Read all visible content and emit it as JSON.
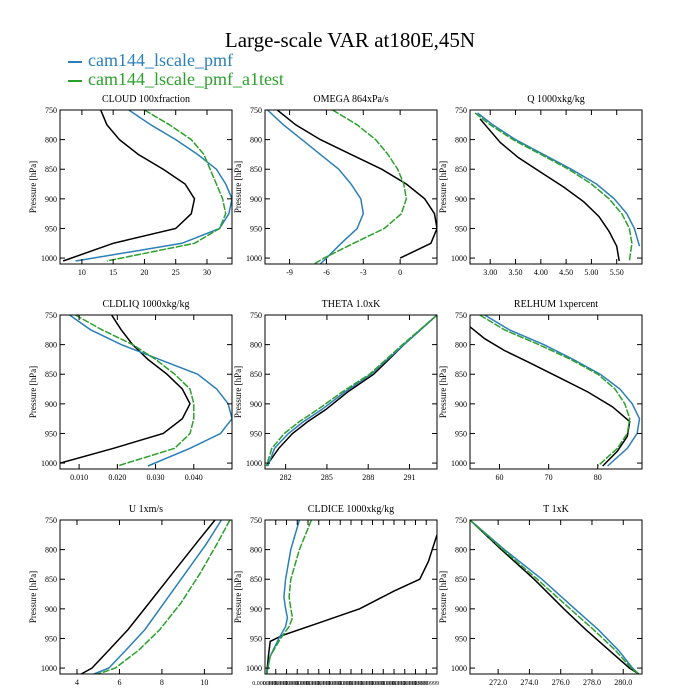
{
  "title": "Large-scale VAR at180E,45N",
  "legend": [
    {
      "name": "cam144_lscale_pmf",
      "color": "#2c7fb8"
    },
    {
      "name": "cam144_lscale_pmf_a1test",
      "color": "#2ca02c"
    }
  ],
  "colors": {
    "control": "#000000"
  },
  "ylabel": "Pressure [hPa]",
  "ylim": [
    750,
    1010
  ],
  "yticks": [
    750,
    800,
    850,
    900,
    950,
    1000
  ],
  "chart_data": [
    {
      "type": "line",
      "title": "CLOUD  100xfraction",
      "xlim": [
        6.5,
        34
      ],
      "xticks": [
        10,
        15,
        20,
        25,
        30
      ],
      "xticklabels": [
        "10",
        "15",
        "20",
        "25",
        "30"
      ],
      "series": [
        {
          "color": "#000000",
          "x": [
            13,
            14,
            16,
            19,
            23,
            26.5,
            28,
            27.5,
            25,
            15,
            7
          ],
          "y": [
            750,
            775,
            800,
            825,
            850,
            875,
            900,
            925,
            950,
            975,
            1005
          ]
        },
        {
          "color": "#2c7fb8",
          "x": [
            17.5,
            21,
            25,
            28.5,
            31.5,
            33,
            34,
            33.5,
            32,
            26,
            9
          ],
          "y": [
            750,
            775,
            800,
            825,
            850,
            875,
            900,
            925,
            950,
            975,
            1005
          ]
        },
        {
          "color": "#2ca02c",
          "x": [
            20,
            24,
            27.5,
            29.5,
            30.5,
            31.5,
            32.5,
            33,
            32,
            28,
            14
          ],
          "y": [
            750,
            775,
            800,
            825,
            850,
            875,
            900,
            925,
            950,
            975,
            1005
          ]
        }
      ]
    },
    {
      "type": "line",
      "title": "OMEGA  864xPa/s",
      "xlim": [
        -11,
        3
      ],
      "xticks": [
        -9,
        -6,
        -3,
        0
      ],
      "xticklabels": [
        "-9",
        "-6",
        "-3",
        "0"
      ],
      "series": [
        {
          "color": "#000000",
          "x": [
            -10,
            -8.5,
            -6.5,
            -4,
            -1.5,
            0.5,
            2,
            2.8,
            3,
            2.5,
            0
          ],
          "y": [
            750,
            775,
            800,
            825,
            850,
            875,
            900,
            925,
            950,
            975,
            1000
          ]
        },
        {
          "color": "#2c7fb8",
          "x": [
            -10.8,
            -9.5,
            -8,
            -6.5,
            -5,
            -4,
            -3.2,
            -3,
            -3.5,
            -4.8,
            -6,
            -6.5
          ],
          "y": [
            750,
            775,
            800,
            825,
            850,
            875,
            900,
            925,
            950,
            975,
            1000,
            1010
          ]
        },
        {
          "color": "#2ca02c",
          "x": [
            -5.5,
            -3.5,
            -2,
            -1,
            -0.2,
            0.3,
            0.5,
            0.1,
            -1.3,
            -3.8,
            -6.2,
            -7
          ],
          "y": [
            750,
            775,
            800,
            825,
            850,
            875,
            900,
            925,
            950,
            975,
            1000,
            1010
          ]
        }
      ]
    },
    {
      "type": "line",
      "title": "Q  1000xkg/kg",
      "xlim": [
        2.6,
        6
      ],
      "xticks": [
        3.0,
        3.5,
        4.0,
        4.5,
        5.0,
        5.5
      ],
      "xticklabels": [
        "3.00",
        "3.50",
        "4.00",
        "4.50",
        "5.00",
        "5.50"
      ],
      "series": [
        {
          "color": "#000000",
          "x": [
            2.8,
            2.95,
            3.2,
            3.55,
            4.0,
            4.45,
            4.85,
            5.15,
            5.35,
            5.5,
            5.55
          ],
          "y": [
            765,
            780,
            805,
            830,
            855,
            880,
            905,
            930,
            955,
            980,
            1005
          ]
        },
        {
          "color": "#2c7fb8",
          "x": [
            2.75,
            3.05,
            3.5,
            4.05,
            4.6,
            5.1,
            5.45,
            5.7,
            5.85,
            5.95
          ],
          "y": [
            755,
            775,
            800,
            825,
            850,
            875,
            900,
            925,
            950,
            980
          ]
        },
        {
          "color": "#2ca02c",
          "x": [
            2.7,
            3.0,
            3.45,
            4.0,
            4.55,
            5.0,
            5.35,
            5.6,
            5.75,
            5.8,
            5.75
          ],
          "y": [
            755,
            775,
            800,
            825,
            850,
            875,
            900,
            925,
            950,
            975,
            1005
          ]
        }
      ]
    },
    {
      "type": "line",
      "title": "CLDLIQ  1000xkg/kg",
      "xlim": [
        0.005,
        0.05
      ],
      "xticks": [
        0.01,
        0.02,
        0.03,
        0.04
      ],
      "xticklabels": [
        "0.010",
        "0.020",
        "0.030",
        "0.040"
      ],
      "series": [
        {
          "color": "#000000",
          "x": [
            0.0185,
            0.021,
            0.024,
            0.028,
            0.033,
            0.037,
            0.039,
            0.037,
            0.032,
            0.019,
            0.005
          ],
          "y": [
            750,
            775,
            800,
            825,
            850,
            875,
            900,
            925,
            950,
            975,
            1000
          ]
        },
        {
          "color": "#2c7fb8",
          "x": [
            0.0075,
            0.013,
            0.021,
            0.031,
            0.041,
            0.046,
            0.049,
            0.05,
            0.047,
            0.039,
            0.028
          ],
          "y": [
            750,
            775,
            800,
            825,
            850,
            875,
            900,
            925,
            950,
            975,
            1005
          ]
        },
        {
          "color": "#2ca02c",
          "x": [
            0.009,
            0.016,
            0.024,
            0.03,
            0.035,
            0.039,
            0.04,
            0.04,
            0.039,
            0.035,
            0.02
          ],
          "y": [
            750,
            775,
            800,
            825,
            850,
            875,
            900,
            925,
            950,
            975,
            1005
          ]
        }
      ]
    },
    {
      "type": "line",
      "title": "THETA  1.0xK",
      "xlim": [
        280.5,
        293
      ],
      "xticks": [
        282,
        285,
        288,
        291
      ],
      "xticklabels": [
        "282",
        "285",
        "288",
        "291"
      ],
      "series": [
        {
          "color": "#000000",
          "x": [
            293,
            290.6,
            288.4,
            286.5,
            284.9,
            283.6,
            282.5,
            281.5,
            280.6
          ],
          "y": [
            750,
            800,
            850,
            880,
            910,
            930,
            950,
            975,
            1005
          ]
        },
        {
          "color": "#2c7fb8",
          "x": [
            293,
            290.6,
            288.2,
            286.3,
            284.6,
            283.3,
            282.2,
            281.2,
            280.7
          ],
          "y": [
            750,
            800,
            850,
            880,
            910,
            930,
            950,
            975,
            1005
          ]
        },
        {
          "color": "#2ca02c",
          "x": [
            293,
            290.5,
            288.1,
            286.1,
            284.3,
            283.0,
            281.9,
            281.0,
            280.6
          ],
          "y": [
            750,
            800,
            850,
            880,
            910,
            930,
            950,
            975,
            1005
          ]
        }
      ]
    },
    {
      "type": "line",
      "title": "RELHUM  1xpercent",
      "xlim": [
        54,
        89
      ],
      "xticks": [
        60,
        70,
        80
      ],
      "xticklabels": [
        "60",
        "70",
        "80"
      ],
      "series": [
        {
          "color": "#000000",
          "x": [
            54,
            57,
            61,
            66,
            72,
            78,
            83,
            86.5,
            86,
            84,
            81
          ],
          "y": [
            770,
            790,
            810,
            830,
            855,
            880,
            905,
            930,
            955,
            980,
            1005
          ]
        },
        {
          "color": "#2c7fb8",
          "x": [
            57,
            62,
            69,
            75,
            80.5,
            84.5,
            87,
            88.5,
            88,
            86,
            82
          ],
          "y": [
            750,
            775,
            800,
            825,
            850,
            875,
            900,
            925,
            950,
            975,
            1005
          ]
        },
        {
          "color": "#2ca02c",
          "x": [
            56,
            61,
            68,
            74.5,
            80,
            83.5,
            85.5,
            86.5,
            86,
            84,
            80
          ],
          "y": [
            750,
            775,
            800,
            825,
            850,
            875,
            900,
            925,
            950,
            975,
            1005
          ]
        }
      ]
    },
    {
      "type": "line",
      "title": "U  1xm/s",
      "xlim": [
        3.2,
        11.3
      ],
      "xticks": [
        4,
        6,
        8,
        10
      ],
      "xticklabels": [
        "4",
        "6",
        "8",
        "10"
      ],
      "series": [
        {
          "color": "#000000",
          "x": [
            10.5,
            9.6,
            8.5,
            7.4,
            6.4,
            5.5,
            4.7,
            4.2
          ],
          "y": [
            750,
            790,
            840,
            890,
            935,
            970,
            1000,
            1010
          ]
        },
        {
          "color": "#2c7fb8",
          "x": [
            10.8,
            10.1,
            9.1,
            8.1,
            7.2,
            6.3,
            5.5,
            4.8
          ],
          "y": [
            750,
            790,
            840,
            890,
            935,
            970,
            1000,
            1010
          ]
        },
        {
          "color": "#2ca02c",
          "x": [
            11.2,
            10.6,
            9.8,
            8.9,
            7.9,
            6.9,
            5.8,
            5.0
          ],
          "y": [
            750,
            790,
            840,
            890,
            935,
            970,
            1000,
            1010
          ]
        }
      ]
    },
    {
      "type": "line",
      "title": "CLDICE  1000xkg/kg",
      "xlim": [
        0,
        1
      ],
      "xticks": [
        0.0,
        0.0625,
        0.125,
        0.1875,
        0.25,
        0.3125,
        0.375,
        0.4375,
        0.5,
        0.5625,
        0.625,
        0.6875,
        0.75,
        0.8125,
        0.875,
        0.9375,
        1.0
      ],
      "xticklabels": [
        "0.0000000",
        "0.0000000",
        "0.0000000",
        "0.0000000",
        "0.0000000",
        "0.0000000",
        "0.0000000",
        "0.0000000",
        "0.0000000",
        "0.0000000",
        "0.0000000",
        "0.0000000",
        "0.0000000",
        "0.0000000",
        "0.0000000",
        "0.9999999",
        ""
      ],
      "series": [
        {
          "color": "#000000",
          "x": [
            1.0,
            0.95,
            0.9,
            0.75,
            0.55,
            0.3,
            0.1,
            0.03,
            0.02,
            0.01
          ],
          "y": [
            775,
            820,
            850,
            870,
            900,
            925,
            945,
            955,
            980,
            1010
          ]
        },
        {
          "color": "#2c7fb8",
          "x": [
            0.2,
            0.15,
            0.12,
            0.11,
            0.12,
            0.13,
            0.12,
            0.08,
            0.03,
            0.01
          ],
          "y": [
            750,
            800,
            850,
            880,
            900,
            915,
            930,
            950,
            980,
            1010
          ]
        },
        {
          "color": "#2ca02c",
          "x": [
            0.27,
            0.2,
            0.15,
            0.14,
            0.15,
            0.16,
            0.14,
            0.09,
            0.03,
            0.01
          ],
          "y": [
            750,
            800,
            850,
            880,
            900,
            915,
            930,
            950,
            980,
            1010
          ]
        }
      ]
    },
    {
      "type": "line",
      "title": "T  1xK",
      "xlim": [
        270.2,
        281.2
      ],
      "xticks": [
        272,
        274,
        276,
        278,
        280
      ],
      "xticklabels": [
        "272.0",
        "274.0",
        "276.0",
        "278.0",
        "280.0"
      ],
      "series": [
        {
          "color": "#000000",
          "x": [
            270.2,
            272.2,
            274.3,
            276.2,
            277.6,
            279.1,
            280.4,
            281.0
          ],
          "y": [
            750,
            800,
            850,
            900,
            935,
            970,
            1000,
            1010
          ]
        },
        {
          "color": "#2c7fb8",
          "x": [
            270.2,
            272.4,
            274.8,
            276.9,
            278.4,
            279.7,
            280.6,
            281.0
          ],
          "y": [
            750,
            800,
            850,
            900,
            935,
            970,
            1000,
            1010
          ]
        },
        {
          "color": "#2ca02c",
          "x": [
            270.2,
            272.3,
            274.5,
            276.6,
            278.1,
            279.5,
            280.5,
            281.0
          ],
          "y": [
            750,
            800,
            850,
            900,
            935,
            970,
            1000,
            1010
          ]
        }
      ]
    }
  ]
}
